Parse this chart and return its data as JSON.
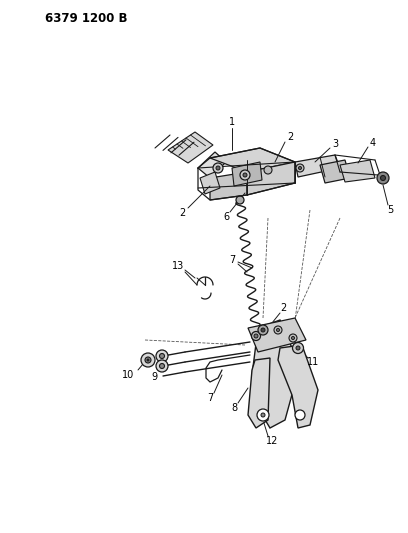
{
  "title": "6379 1200 B",
  "bg": "#ffffff",
  "lc": "#1a1a1a",
  "fig_w": 4.08,
  "fig_h": 5.33,
  "dpi": 100
}
